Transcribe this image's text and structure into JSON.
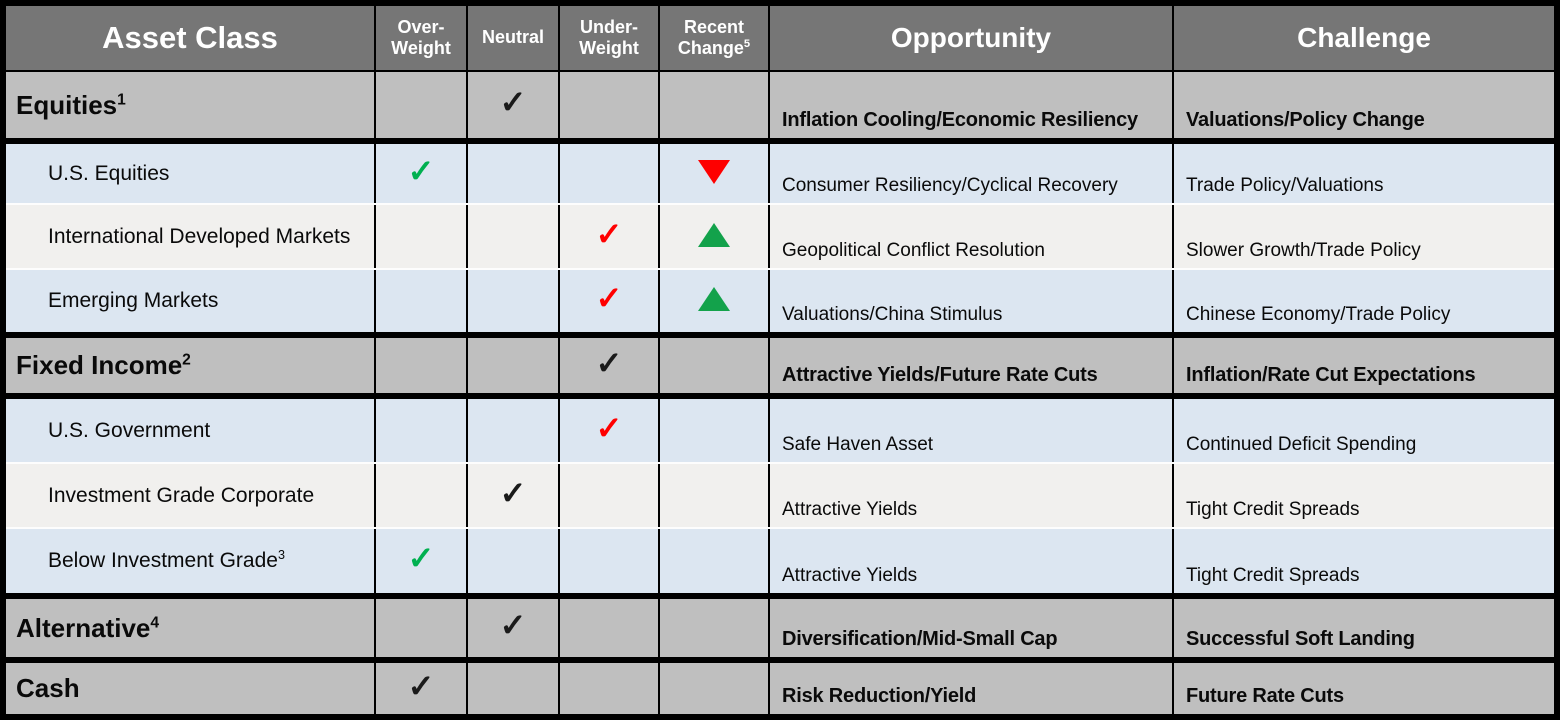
{
  "colors": {
    "header_bg": "#767676",
    "category_row_bg": "#BFBFBF",
    "sub_row_blue": "#DCE6F1",
    "sub_row_white": "#F1F0EE",
    "border_black": "#000000",
    "sub_row_divider": "#FDFDFD",
    "header_text": "#FFFFFF",
    "body_text": "#0A0A0A",
    "check_black": "#1A1A1A",
    "check_green": "#00B050",
    "check_red": "#FF0000",
    "triangle_up_green": "#13A24B",
    "triangle_down_red": "#FE0000"
  },
  "icons": {
    "check": "✓",
    "triangle_up": "▲",
    "triangle_down": "▼"
  },
  "header": {
    "asset_class": "Asset Class",
    "overweight": {
      "line1": "Over-",
      "line2": "Weight"
    },
    "neutral": {
      "line1": "Neutral"
    },
    "underweight": {
      "line1": "Under-",
      "line2": "Weight"
    },
    "recent_change": {
      "line1": "Recent",
      "line2": "Change",
      "sup": "5"
    },
    "opportunity": "Opportunity",
    "challenge": "Challenge"
  },
  "chart_data": {
    "type": "table",
    "columns": [
      "Asset Class",
      "Over-Weight",
      "Neutral",
      "Under-Weight",
      "Recent Change⁵",
      "Opportunity",
      "Challenge"
    ],
    "rows": [
      {
        "type": "category",
        "label": "Equities",
        "sup": "1",
        "marks": {
          "neutral": "check-black"
        },
        "opportunity": "Inflation Cooling/Economic Resiliency",
        "challenge": "Valuations/Policy Change"
      },
      {
        "type": "sub",
        "label": "U.S. Equities",
        "sup": "",
        "marks": {
          "overweight": "check-green",
          "recent_change": "triangle-down-red"
        },
        "opportunity": "Consumer Resiliency/Cyclical Recovery",
        "challenge": "Trade Policy/Valuations"
      },
      {
        "type": "sub",
        "label": "International Developed Markets",
        "sup": "",
        "marks": {
          "underweight": "check-red",
          "recent_change": "triangle-up-green"
        },
        "opportunity": "Geopolitical Conflict Resolution",
        "challenge": "Slower Growth/Trade Policy"
      },
      {
        "type": "sub",
        "label": "Emerging Markets",
        "sup": "",
        "marks": {
          "underweight": "check-red",
          "recent_change": "triangle-up-green"
        },
        "opportunity": "Valuations/China Stimulus",
        "challenge": "Chinese Economy/Trade Policy"
      },
      {
        "type": "category",
        "label": "Fixed Income",
        "sup": "2",
        "marks": {
          "underweight": "check-black"
        },
        "opportunity": "Attractive Yields/Future Rate Cuts",
        "challenge": "Inflation/Rate Cut Expectations"
      },
      {
        "type": "sub",
        "label": "U.S. Government",
        "sup": "",
        "marks": {
          "underweight": "check-red"
        },
        "opportunity": "Safe Haven Asset",
        "challenge": "Continued Deficit Spending"
      },
      {
        "type": "sub",
        "label": "Investment Grade Corporate",
        "sup": "",
        "marks": {
          "neutral": "check-black"
        },
        "opportunity": "Attractive Yields",
        "challenge": "Tight Credit Spreads"
      },
      {
        "type": "sub",
        "label": "Below Investment Grade",
        "sup": "3",
        "marks": {
          "overweight": "check-green"
        },
        "opportunity": "Attractive Yields",
        "challenge": "Tight Credit Spreads"
      },
      {
        "type": "category",
        "label": "Alternative",
        "sup": "4",
        "marks": {
          "neutral": "check-black"
        },
        "opportunity": "Diversification/Mid-Small Cap",
        "challenge": "Successful Soft Landing"
      },
      {
        "type": "category",
        "label": "Cash",
        "sup": "",
        "marks": {
          "overweight": "check-black"
        },
        "opportunity": "Risk Reduction/Yield",
        "challenge": "Future Rate Cuts"
      }
    ]
  }
}
